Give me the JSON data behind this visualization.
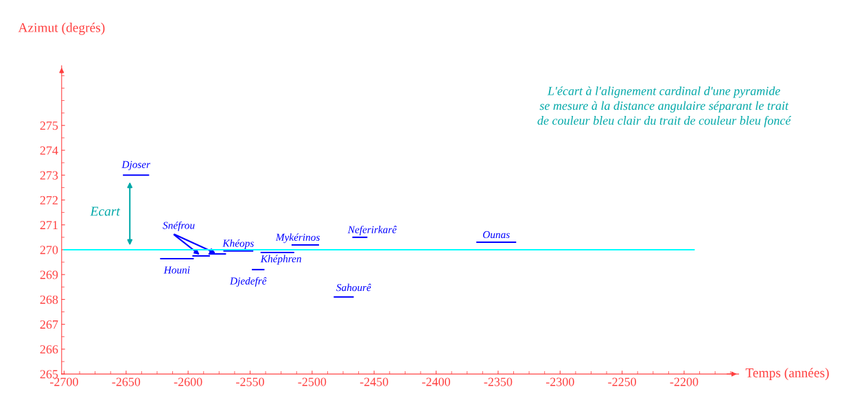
{
  "chart_data": {
    "type": "line",
    "xlabel": "Temps (années)",
    "ylabel": "Azimut (degrés)",
    "xlim": [
      -2702,
      -2156
    ],
    "xticks": [
      -2700,
      -2650,
      -2600,
      -2550,
      -2500,
      -2450,
      -2400,
      -2350,
      -2300,
      -2250,
      -2200
    ],
    "ylim": [
      265,
      277.4
    ],
    "yticks": [
      265,
      266,
      267,
      268,
      269,
      270,
      271,
      272,
      273,
      274,
      275
    ],
    "grid": false,
    "marker": "none",
    "line_style": "solid",
    "series": [
      {
        "name": "Djoser",
        "color": "#0000ff",
        "x": [
          -2652,
          -2632
        ],
        "values": [
          273.0,
          273.0
        ]
      },
      {
        "name": "Houni",
        "color": "#0000ff",
        "x": [
          -2622,
          -2596
        ],
        "values": [
          269.64,
          269.64
        ]
      },
      {
        "name": "Snéfrou",
        "color": "#0000ff",
        "x": [
          -2596,
          -2583
        ],
        "values": [
          269.75,
          269.75
        ]
      },
      {
        "color": "#0000ff",
        "x": [
          -2583,
          -2570
        ],
        "values": [
          269.83,
          269.83
        ]
      },
      {
        "name": "Khéops",
        "color": "#0000ff",
        "x": [
          -2571,
          -2548
        ],
        "values": [
          269.95,
          269.95
        ]
      },
      {
        "name": "Djedefrê",
        "color": "#0000ff",
        "x": [
          -2548,
          -2539
        ],
        "values": [
          269.2,
          269.2
        ]
      },
      {
        "name": "Khéphren",
        "color": "#0000ff",
        "x": [
          -2541,
          -2515
        ],
        "values": [
          269.89,
          269.89
        ]
      },
      {
        "name": "Mykérinos",
        "color": "#0000ff",
        "x": [
          -2516,
          -2495
        ],
        "values": [
          270.19,
          270.19
        ]
      },
      {
        "name": "Sahourê",
        "color": "#0000ff",
        "x": [
          -2482,
          -2467
        ],
        "values": [
          268.1,
          268.1
        ]
      },
      {
        "name": "Neferirkarê",
        "color": "#0000ff",
        "x": [
          -2467,
          -2456
        ],
        "values": [
          270.5,
          270.5
        ]
      },
      {
        "name": "Ounas",
        "color": "#0000ff",
        "x": [
          -2367,
          -2336
        ],
        "values": [
          270.3,
          270.3
        ]
      },
      {
        "color": "#00ffff",
        "x": [
          -2700,
          -2192
        ],
        "values": [
          270,
          270
        ]
      }
    ],
    "annotations": [
      "Ecart",
      "L'écart à l'alignement cardinal d'une pyramide\nse mesure à la distance angulaire séparant le trait\nde couleur bleu clair du trait de couleur bleu foncé"
    ]
  }
}
